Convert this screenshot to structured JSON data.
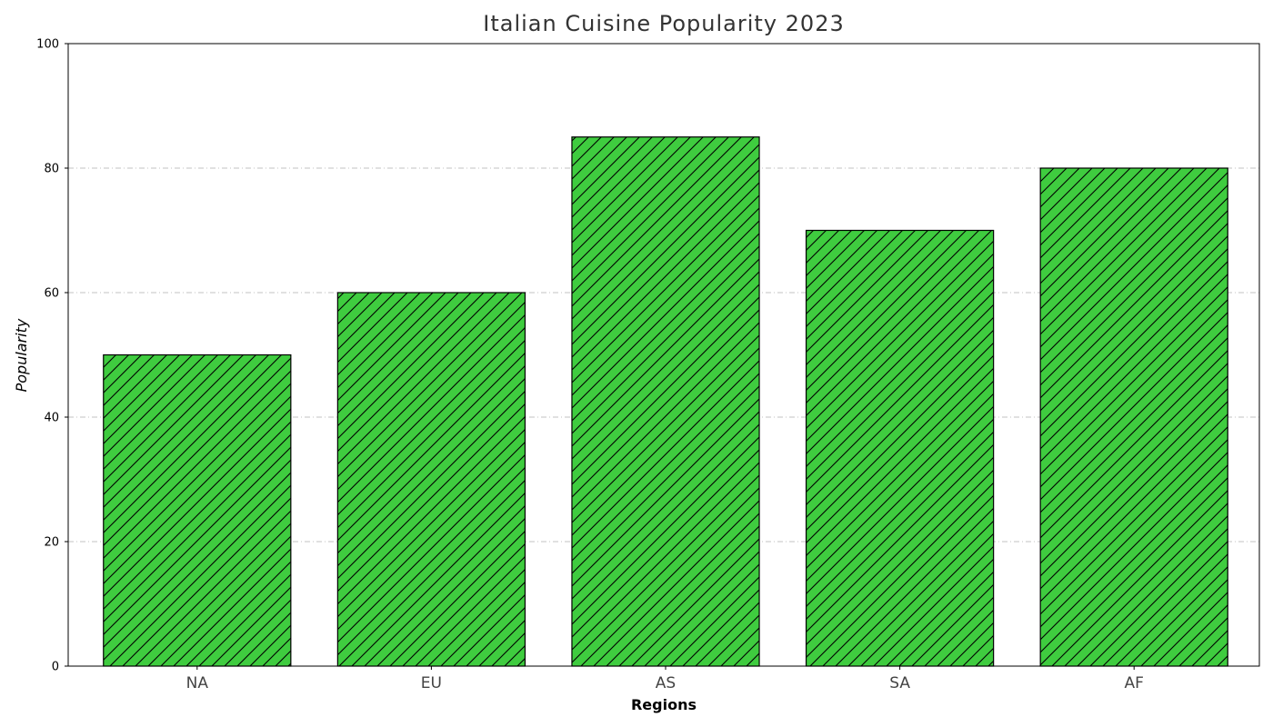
{
  "chart_data": {
    "type": "bar",
    "title": "Italian Cuisine Popularity 2023",
    "xlabel": "Regions",
    "ylabel": "Popularity",
    "categories": [
      "NA",
      "EU",
      "AS",
      "SA",
      "AF"
    ],
    "values": [
      50,
      60,
      85,
      70,
      80
    ],
    "ylim": [
      0,
      100
    ],
    "yticks": [
      "0",
      "20",
      "40",
      "60",
      "80",
      "100"
    ],
    "grid": "horizontal dash-dot",
    "bar_color": "#3fcc3f",
    "bar_edge_color": "#000000",
    "bar_hatch": "diagonal-forward"
  }
}
